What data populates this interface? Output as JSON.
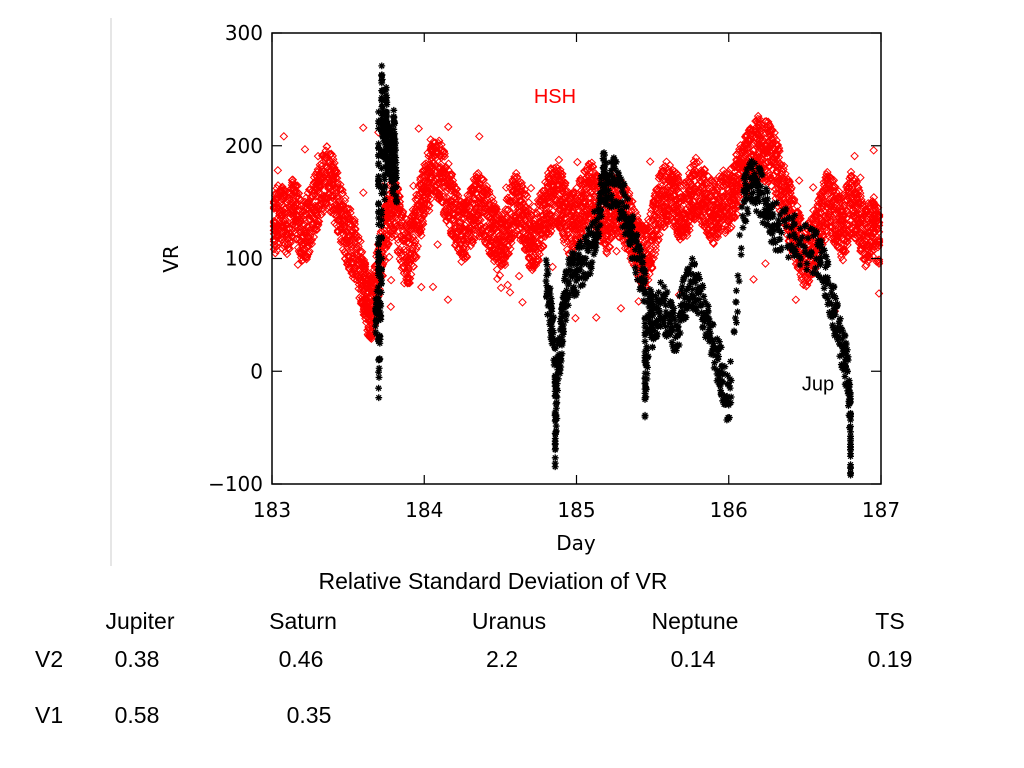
{
  "chart_data": {
    "type": "scatter",
    "xlabel": "Day",
    "ylabel": "VR",
    "xlim": [
      183,
      187
    ],
    "ylim": [
      -100,
      300
    ],
    "xticks": [
      183,
      184,
      185,
      186,
      187
    ],
    "yticks": [
      -100,
      0,
      100,
      200,
      300
    ],
    "grid": false,
    "series": [
      {
        "name": "HSH",
        "marker": "diamond",
        "color": "#ff0000",
        "points": [
          [
            183.0,
            125
          ],
          [
            183.05,
            140
          ],
          [
            183.1,
            130
          ],
          [
            183.15,
            150
          ],
          [
            183.2,
            118
          ],
          [
            183.25,
            135
          ],
          [
            183.3,
            155
          ],
          [
            183.35,
            175
          ],
          [
            183.4,
            165
          ],
          [
            183.45,
            140
          ],
          [
            183.5,
            120
          ],
          [
            183.55,
            105
          ],
          [
            183.6,
            80
          ],
          [
            183.63,
            60
          ],
          [
            183.66,
            55
          ],
          [
            183.7,
            90
          ],
          [
            183.75,
            130
          ],
          [
            183.8,
            150
          ],
          [
            183.85,
            120
          ],
          [
            183.9,
            100
          ],
          [
            183.95,
            130
          ],
          [
            184.0,
            160
          ],
          [
            184.05,
            175
          ],
          [
            184.1,
            180
          ],
          [
            184.15,
            160
          ],
          [
            184.2,
            140
          ],
          [
            184.25,
            120
          ],
          [
            184.3,
            135
          ],
          [
            184.35,
            150
          ],
          [
            184.4,
            140
          ],
          [
            184.45,
            125
          ],
          [
            184.5,
            110
          ],
          [
            184.55,
            130
          ],
          [
            184.6,
            150
          ],
          [
            184.65,
            140
          ],
          [
            184.7,
            115
          ],
          [
            184.75,
            125
          ],
          [
            184.8,
            145
          ],
          [
            184.85,
            160
          ],
          [
            184.9,
            150
          ],
          [
            184.95,
            130
          ],
          [
            185.0,
            135
          ],
          [
            185.05,
            150
          ],
          [
            185.1,
            160
          ],
          [
            185.15,
            145
          ],
          [
            185.2,
            130
          ],
          [
            185.25,
            150
          ],
          [
            185.3,
            140
          ],
          [
            185.35,
            130
          ],
          [
            185.4,
            110
          ],
          [
            185.45,
            100
          ],
          [
            185.5,
            120
          ],
          [
            185.55,
            150
          ],
          [
            185.6,
            160
          ],
          [
            185.65,
            150
          ],
          [
            185.7,
            140
          ],
          [
            185.75,
            155
          ],
          [
            185.8,
            165
          ],
          [
            185.85,
            150
          ],
          [
            185.9,
            140
          ],
          [
            185.95,
            150
          ],
          [
            186.0,
            150
          ],
          [
            186.05,
            165
          ],
          [
            186.1,
            180
          ],
          [
            186.15,
            190
          ],
          [
            186.2,
            200
          ],
          [
            186.25,
            195
          ],
          [
            186.3,
            185
          ],
          [
            186.35,
            160
          ],
          [
            186.4,
            140
          ],
          [
            186.45,
            120
          ],
          [
            186.5,
            100
          ],
          [
            186.55,
            110
          ],
          [
            186.6,
            130
          ],
          [
            186.65,
            150
          ],
          [
            186.7,
            140
          ],
          [
            186.75,
            125
          ],
          [
            186.8,
            150
          ],
          [
            186.85,
            140
          ],
          [
            186.9,
            120
          ],
          [
            186.95,
            130
          ],
          [
            187.0,
            115
          ]
        ],
        "spread": 28
      },
      {
        "name": "Jup",
        "marker": "asterisk",
        "color": "#000000",
        "points": [
          [
            183.68,
            40
          ],
          [
            183.7,
            70
          ],
          [
            183.72,
            100
          ],
          [
            183.74,
            170
          ],
          [
            183.76,
            190
          ],
          [
            183.78,
            200
          ],
          [
            183.8,
            170
          ],
          [
            183.82,
            150
          ],
          [
            183.7,
            230
          ],
          [
            183.75,
            240
          ],
          [
            183.8,
            225
          ],
          [
            183.72,
            262
          ],
          [
            183.7,
            -15
          ],
          [
            184.8,
            80
          ],
          [
            184.83,
            50
          ],
          [
            184.86,
            20
          ],
          [
            184.88,
            5
          ],
          [
            184.9,
            30
          ],
          [
            184.92,
            60
          ],
          [
            184.95,
            80
          ],
          [
            185.0,
            90
          ],
          [
            185.05,
            100
          ],
          [
            185.1,
            110
          ],
          [
            185.15,
            140
          ],
          [
            185.18,
            180
          ],
          [
            185.2,
            160
          ],
          [
            185.25,
            170
          ],
          [
            185.3,
            150
          ],
          [
            185.35,
            130
          ],
          [
            185.4,
            100
          ],
          [
            185.45,
            80
          ],
          [
            185.48,
            60
          ],
          [
            185.5,
            40
          ],
          [
            185.55,
            60
          ],
          [
            185.6,
            50
          ],
          [
            185.65,
            30
          ],
          [
            185.7,
            60
          ],
          [
            185.75,
            80
          ],
          [
            185.8,
            70
          ],
          [
            185.85,
            50
          ],
          [
            185.9,
            20
          ],
          [
            185.95,
            0
          ],
          [
            186.0,
            -30
          ],
          [
            184.86,
            -65
          ],
          [
            185.45,
            -25
          ],
          [
            186.1,
            150
          ],
          [
            186.15,
            170
          ],
          [
            186.2,
            160
          ],
          [
            186.25,
            140
          ],
          [
            186.3,
            130
          ],
          [
            186.4,
            120
          ],
          [
            186.5,
            110
          ],
          [
            186.6,
            100
          ],
          [
            186.65,
            80
          ],
          [
            186.7,
            50
          ],
          [
            186.75,
            20
          ],
          [
            186.78,
            0
          ],
          [
            186.8,
            -40
          ],
          [
            186.8,
            -85
          ]
        ],
        "spread": 22
      }
    ],
    "labels": [
      {
        "text": "HSH",
        "color": "#ff0000",
        "at": [
          184.72,
          238
        ]
      },
      {
        "text": "Jup",
        "color": "#000000",
        "at": [
          186.48,
          -17
        ]
      }
    ]
  },
  "table": {
    "title": "Relative Standard Deviation of VR",
    "columns": [
      "Jupiter",
      "Saturn",
      "Uranus",
      "Neptune",
      "TS"
    ],
    "rows": [
      {
        "label": "V2",
        "values": [
          "0.38",
          "0.46",
          "2.2",
          "0.14",
          "0.19"
        ]
      },
      {
        "label": "V1",
        "values": [
          "0.58",
          "0.35",
          "",
          "",
          ""
        ]
      }
    ]
  }
}
